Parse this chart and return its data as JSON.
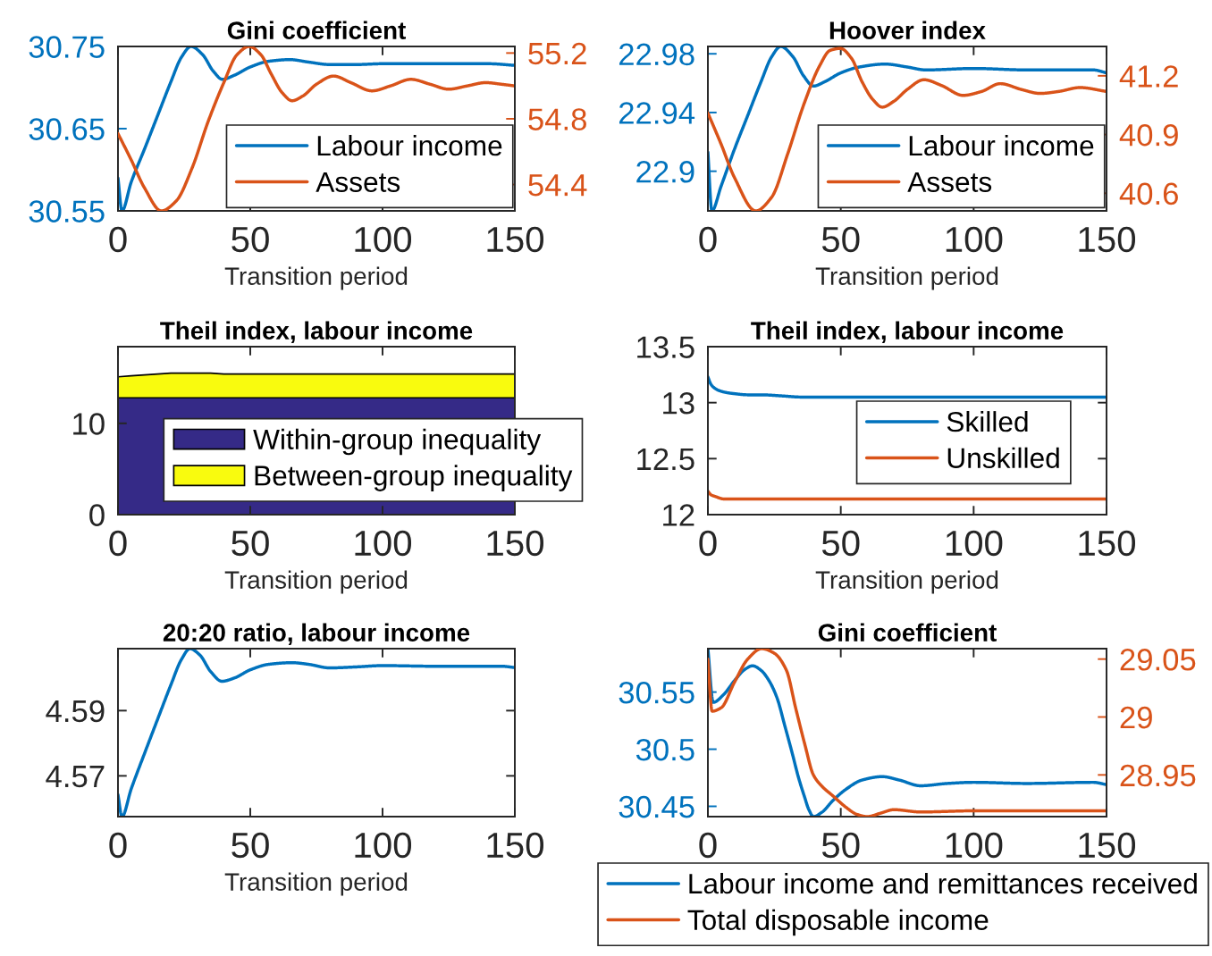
{
  "chart_data": [
    {
      "type": "line",
      "title": "Gini coefficient",
      "xlabel": "Transition period",
      "xlim": [
        0,
        150
      ],
      "xticks": [
        0,
        50,
        100,
        150
      ],
      "ylim": [
        30.55,
        30.75
      ],
      "yticks": [
        30.55,
        30.65,
        30.75
      ],
      "y2lim": [
        54.24,
        55.24
      ],
      "y2ticks": [
        54.4,
        54.8,
        55.2
      ],
      "legend": "bottom right",
      "series": [
        {
          "name": "Labour income",
          "color": "#0072bd",
          "x": [
            0,
            1.5,
            5,
            10,
            15,
            20,
            24,
            27.6,
            32,
            36,
            39.5,
            44,
            50,
            57,
            65,
            72,
            80,
            90,
            100,
            120,
            140,
            150
          ],
          "values": [
            30.59,
            30.55,
            30.585,
            30.625,
            30.666,
            30.707,
            30.737,
            30.75,
            30.74,
            30.72,
            30.71,
            30.715,
            30.725,
            30.732,
            30.734,
            30.731,
            30.728,
            30.728,
            30.729,
            30.729,
            30.729,
            30.727
          ]
        },
        {
          "name": "Assets",
          "color": "#d95319",
          "axis": "y2",
          "x": [
            0,
            5,
            10,
            16.4,
            22,
            28,
            34,
            40,
            45,
            49.6,
            54,
            58,
            62,
            65.8,
            70,
            75,
            81.5,
            88,
            96,
            103,
            110.7,
            118,
            125,
            132,
            139,
            145,
            150
          ],
          "values": [
            54.71,
            54.55,
            54.38,
            54.24,
            54.3,
            54.5,
            54.78,
            55.02,
            55.19,
            55.24,
            55.19,
            55.07,
            54.96,
            54.91,
            54.94,
            55.01,
            55.06,
            55.02,
            54.97,
            55.0,
            55.04,
            55.01,
            54.98,
            55.0,
            55.02,
            55.01,
            55.0
          ]
        }
      ]
    },
    {
      "type": "line",
      "title": "Hoover index",
      "xlabel": "Transition period",
      "xlim": [
        0,
        150
      ],
      "xticks": [
        0,
        50,
        100,
        150
      ],
      "ylim": [
        22.873,
        22.985
      ],
      "yticks": [
        22.9,
        22.94,
        22.98
      ],
      "y2lim": [
        40.51,
        41.35
      ],
      "y2ticks": [
        40.6,
        40.9,
        41.2
      ],
      "legend": "bottom right",
      "series": [
        {
          "name": "Labour income",
          "color": "#0072bd",
          "x": [
            0,
            1.5,
            5,
            10,
            15,
            20,
            24,
            27.4,
            32,
            36,
            39.7,
            44,
            50,
            57,
            66.7,
            75,
            82,
            100,
            120,
            145,
            150
          ],
          "values": [
            22.913,
            22.873,
            22.89,
            22.915,
            22.938,
            22.961,
            22.978,
            22.985,
            22.978,
            22.965,
            22.958,
            22.961,
            22.967,
            22.971,
            22.973,
            22.971,
            22.969,
            22.97,
            22.969,
            22.969,
            22.967
          ]
        },
        {
          "name": "Assets",
          "color": "#d95319",
          "axis": "y2",
          "x": [
            0,
            5,
            10,
            18,
            24,
            30,
            36,
            42,
            46,
            49.9,
            54,
            58,
            62,
            65.6,
            70,
            75,
            81.3,
            88,
            96,
            103,
            110,
            118,
            125,
            132,
            140,
            150
          ],
          "values": [
            41.01,
            40.85,
            40.68,
            40.51,
            40.58,
            40.8,
            41.05,
            41.25,
            41.33,
            41.34,
            41.29,
            41.17,
            41.08,
            41.04,
            41.07,
            41.13,
            41.18,
            41.15,
            41.1,
            41.12,
            41.16,
            41.13,
            41.11,
            41.12,
            41.14,
            41.12
          ]
        }
      ]
    },
    {
      "type": "area",
      "stacked": true,
      "title": "Theil index, labour income",
      "xlabel": "Transition period",
      "xlim": [
        0,
        150
      ],
      "xticks": [
        0,
        50,
        100,
        150
      ],
      "ylim": [
        0,
        18.4
      ],
      "yticks": [
        0,
        10
      ],
      "legend": "bottom right",
      "x": [
        0,
        5,
        10,
        15,
        20,
        25,
        30,
        35,
        40,
        50,
        60,
        80,
        100,
        125,
        150
      ],
      "series": [
        {
          "name": "Within-group inequality",
          "color": "#352a87",
          "values": [
            12.8,
            12.8,
            12.8,
            12.8,
            12.8,
            12.8,
            12.8,
            12.8,
            12.8,
            12.8,
            12.8,
            12.8,
            12.8,
            12.8,
            12.8
          ]
        },
        {
          "name": "Between-group inequality",
          "color": "#f9fb0e",
          "values": [
            2.3,
            2.4,
            2.5,
            2.6,
            2.7,
            2.7,
            2.7,
            2.7,
            2.6,
            2.6,
            2.6,
            2.6,
            2.6,
            2.6,
            2.6
          ]
        }
      ]
    },
    {
      "type": "line",
      "title": "Theil index, labour income",
      "xlabel": "Transition period",
      "xlim": [
        0,
        150
      ],
      "xticks": [
        0,
        50,
        100,
        150
      ],
      "ylim": [
        12,
        13.5
      ],
      "yticks": [
        12,
        12.5,
        13,
        13.5
      ],
      "legend": "right",
      "series": [
        {
          "name": "Skilled",
          "color": "#0072bd",
          "x": [
            0,
            1,
            2,
            4,
            7,
            10,
            15,
            20,
            28,
            35,
            50,
            100,
            150
          ],
          "values": [
            13.23,
            13.17,
            13.14,
            13.11,
            13.09,
            13.08,
            13.07,
            13.07,
            13.06,
            13.05,
            13.05,
            13.05,
            13.05
          ]
        },
        {
          "name": "Unskilled",
          "color": "#d95319",
          "x": [
            0,
            1,
            3,
            6,
            10,
            20,
            50,
            100,
            150
          ],
          "values": [
            12.21,
            12.18,
            12.16,
            12.14,
            12.14,
            12.14,
            12.14,
            12.14,
            12.14
          ]
        }
      ]
    },
    {
      "type": "line",
      "title": "20:20 ratio, labour income",
      "xlabel": "Transition period",
      "xlim": [
        0,
        150
      ],
      "xticks": [
        0,
        50,
        100,
        150
      ],
      "ylim": [
        4.5575,
        4.609
      ],
      "yticks": [
        4.57,
        4.59
      ],
      "series": [
        {
          "color": "#0072bd",
          "x": [
            0,
            1.5,
            5,
            10,
            15,
            20,
            24,
            27.2,
            31,
            35,
            39.3,
            44,
            50,
            57,
            65.8,
            72,
            80,
            90,
            100,
            120,
            145,
            150
          ],
          "values": [
            4.5642,
            4.5575,
            4.566,
            4.5768,
            4.5874,
            4.5979,
            4.6057,
            4.609,
            4.607,
            4.602,
            4.599,
            4.6,
            4.6025,
            4.6042,
            4.6047,
            4.6042,
            4.6031,
            4.6034,
            4.6038,
            4.6036,
            4.6036,
            4.6032
          ]
        }
      ]
    },
    {
      "type": "line",
      "title": "Gini coefficient",
      "xlim": [
        0,
        150
      ],
      "xticks": [
        0,
        50,
        100,
        150
      ],
      "ylim": [
        30.441,
        30.588
      ],
      "yticks": [
        30.45,
        30.5,
        30.55
      ],
      "y2lim": [
        28.914,
        29.059
      ],
      "y2ticks": [
        28.95,
        29,
        29.05
      ],
      "legend": "bottom",
      "series": [
        {
          "name": "Labour income and remittances received",
          "color": "#0072bd",
          "x": [
            0,
            2,
            6,
            10,
            14,
            16.8,
            20,
            23,
            26,
            29,
            31.9,
            34,
            36.4,
            38,
            39.7,
            43,
            47,
            52,
            58,
            65.6,
            72,
            80,
            90,
            100,
            120,
            145,
            150
          ],
          "values": [
            30.588,
            30.541,
            30.548,
            30.56,
            30.57,
            30.573,
            30.569,
            30.56,
            30.545,
            30.52,
            30.495,
            30.476,
            30.458,
            30.447,
            30.441,
            30.445,
            30.455,
            30.465,
            30.473,
            30.476,
            30.473,
            30.468,
            30.47,
            30.471,
            30.47,
            30.471,
            30.469
          ]
        },
        {
          "name": "Total disposable income",
          "color": "#d95319",
          "axis": "y2",
          "x": [
            0,
            1.6,
            5,
            10,
            15,
            20.2,
            25,
            29.6,
            33,
            36.4,
            39.7,
            43,
            47,
            52,
            56,
            60,
            65,
            70,
            80,
            100,
            125,
            150
          ],
          "values": [
            29.05,
            29.005,
            29.008,
            29.03,
            29.05,
            29.059,
            29.055,
            29.04,
            29.008,
            28.977,
            28.95,
            28.94,
            28.932,
            28.922,
            28.916,
            28.914,
            28.917,
            28.92,
            28.918,
            28.919,
            28.919,
            28.919
          ]
        }
      ]
    }
  ]
}
